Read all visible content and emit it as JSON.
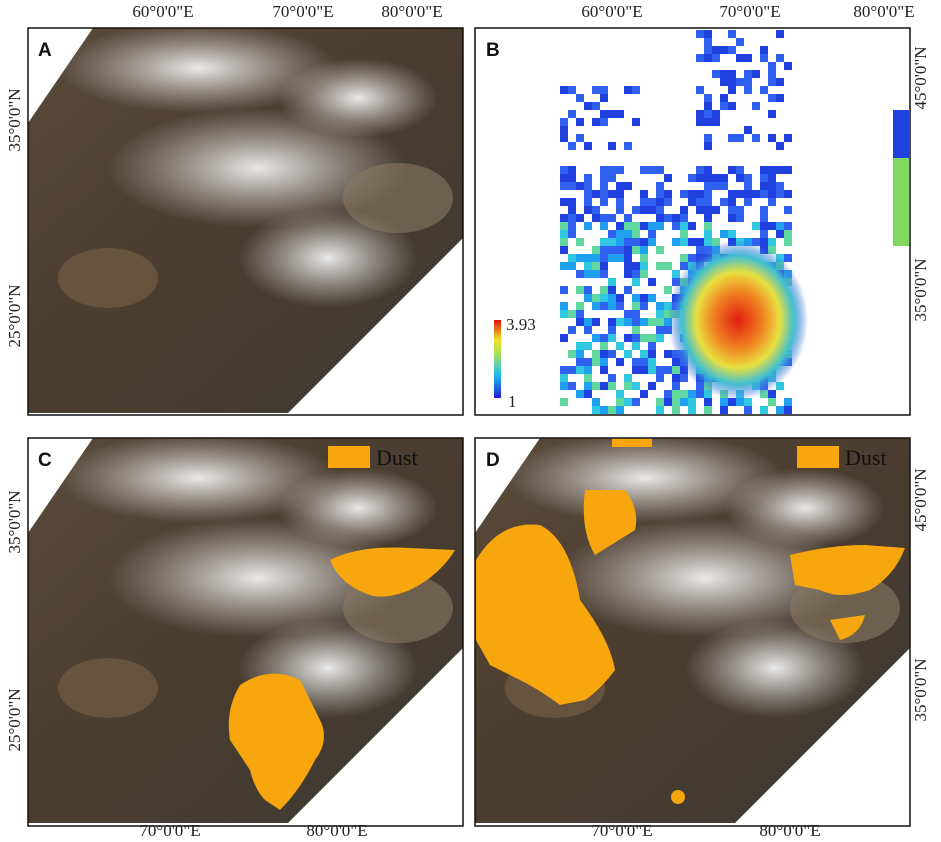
{
  "panels": [
    {
      "label": "A",
      "top_ticks": [
        "60°0'0\"E",
        "70°0'0\"E",
        "80°0'0\"E"
      ],
      "left_ticks": [
        "35°0'0\"N",
        "25°0'0\"N"
      ]
    },
    {
      "label": "B",
      "top_ticks": [
        "60°0'0\"E",
        "70°0'0\"E",
        "80°0'0\"E"
      ],
      "right_ticks": [
        "45°0'0\"N",
        "35°0'0\"N"
      ],
      "colorbar": {
        "max": "3.93",
        "min": "1"
      }
    },
    {
      "label": "C",
      "legend": "Dust",
      "left_ticks": [
        "35°0'0\"N",
        "25°0'0\"N"
      ],
      "bottom_ticks": [
        "70°0'0\"E",
        "80°0'0\"E"
      ]
    },
    {
      "label": "D",
      "legend": "Dust",
      "right_ticks": [
        "45°0'0\"N",
        "35°0'0\"N"
      ],
      "bottom_ticks": [
        "70°0'0\"E",
        "80°0'0\"E"
      ]
    }
  ]
}
